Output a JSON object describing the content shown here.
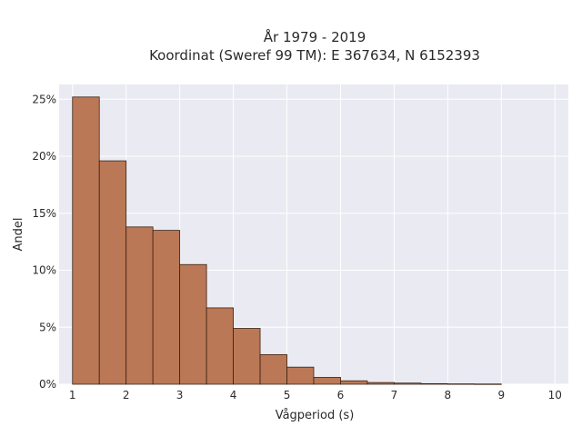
{
  "chart_data": {
    "type": "bar",
    "title_line1": "År 1979 - 2019",
    "title_line2": "Koordinat (Sweref 99 TM): E 367634, N 6152393",
    "xlabel": "Vågperiod (s)",
    "ylabel": "Andel",
    "x_ticks": [
      1,
      2,
      3,
      4,
      5,
      6,
      7,
      8,
      9,
      10
    ],
    "y_ticks": [
      "0%",
      "5%",
      "10%",
      "15%",
      "20%",
      "25%"
    ],
    "y_tick_values": [
      0,
      5,
      10,
      15,
      20,
      25
    ],
    "xlim": [
      0.75,
      10.25
    ],
    "ylim": [
      0,
      26.3
    ],
    "bin_edges": [
      1.0,
      1.5,
      2.0,
      2.5,
      3.0,
      3.5,
      4.0,
      4.5,
      5.0,
      5.5,
      6.0,
      6.5,
      7.0,
      7.5,
      8.0,
      8.5,
      9.0
    ],
    "values": [
      25.2,
      19.6,
      13.8,
      13.5,
      10.5,
      6.7,
      4.9,
      2.6,
      1.5,
      0.6,
      0.3,
      0.15,
      0.1,
      0.05,
      0.03,
      0.02
    ],
    "value_unit": "%",
    "grid": true,
    "colors": {
      "bar_fill": "#bb7856",
      "bar_edge": "#3b2212",
      "plot_bg": "#eaeaf2",
      "grid": "#ffffff",
      "text": "#2a2a2a"
    }
  }
}
